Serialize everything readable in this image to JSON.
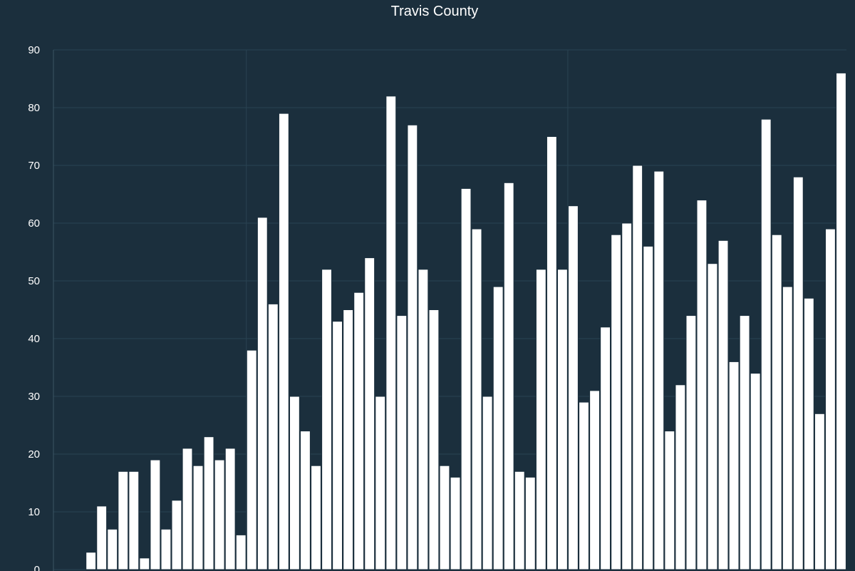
{
  "chart_data": {
    "type": "bar",
    "title": "Travis County",
    "xlabel": "",
    "ylabel": "",
    "ylim": [
      0,
      90
    ],
    "yticks": [
      0,
      10,
      20,
      30,
      40,
      50,
      60,
      70,
      80,
      90
    ],
    "grid": true,
    "vertical_gridlines_after_bar": [
      18,
      48
    ],
    "values": [
      0,
      0,
      0,
      3,
      11,
      7,
      17,
      17,
      2,
      19,
      7,
      12,
      21,
      18,
      23,
      19,
      21,
      6,
      38,
      61,
      46,
      79,
      30,
      24,
      18,
      52,
      43,
      45,
      48,
      54,
      30,
      82,
      44,
      77,
      52,
      45,
      18,
      16,
      66,
      59,
      30,
      49,
      67,
      17,
      16,
      52,
      75,
      52,
      63,
      29,
      31,
      42,
      58,
      60,
      70,
      56,
      69,
      24,
      32,
      44,
      64,
      53,
      57,
      36,
      44,
      34,
      78,
      58,
      49,
      68,
      47,
      27,
      59,
      86
    ],
    "colors": {
      "background": "#1b2f3d",
      "bar": "#ffffff",
      "grid": "#2a4352",
      "text": "#ffffff"
    }
  }
}
